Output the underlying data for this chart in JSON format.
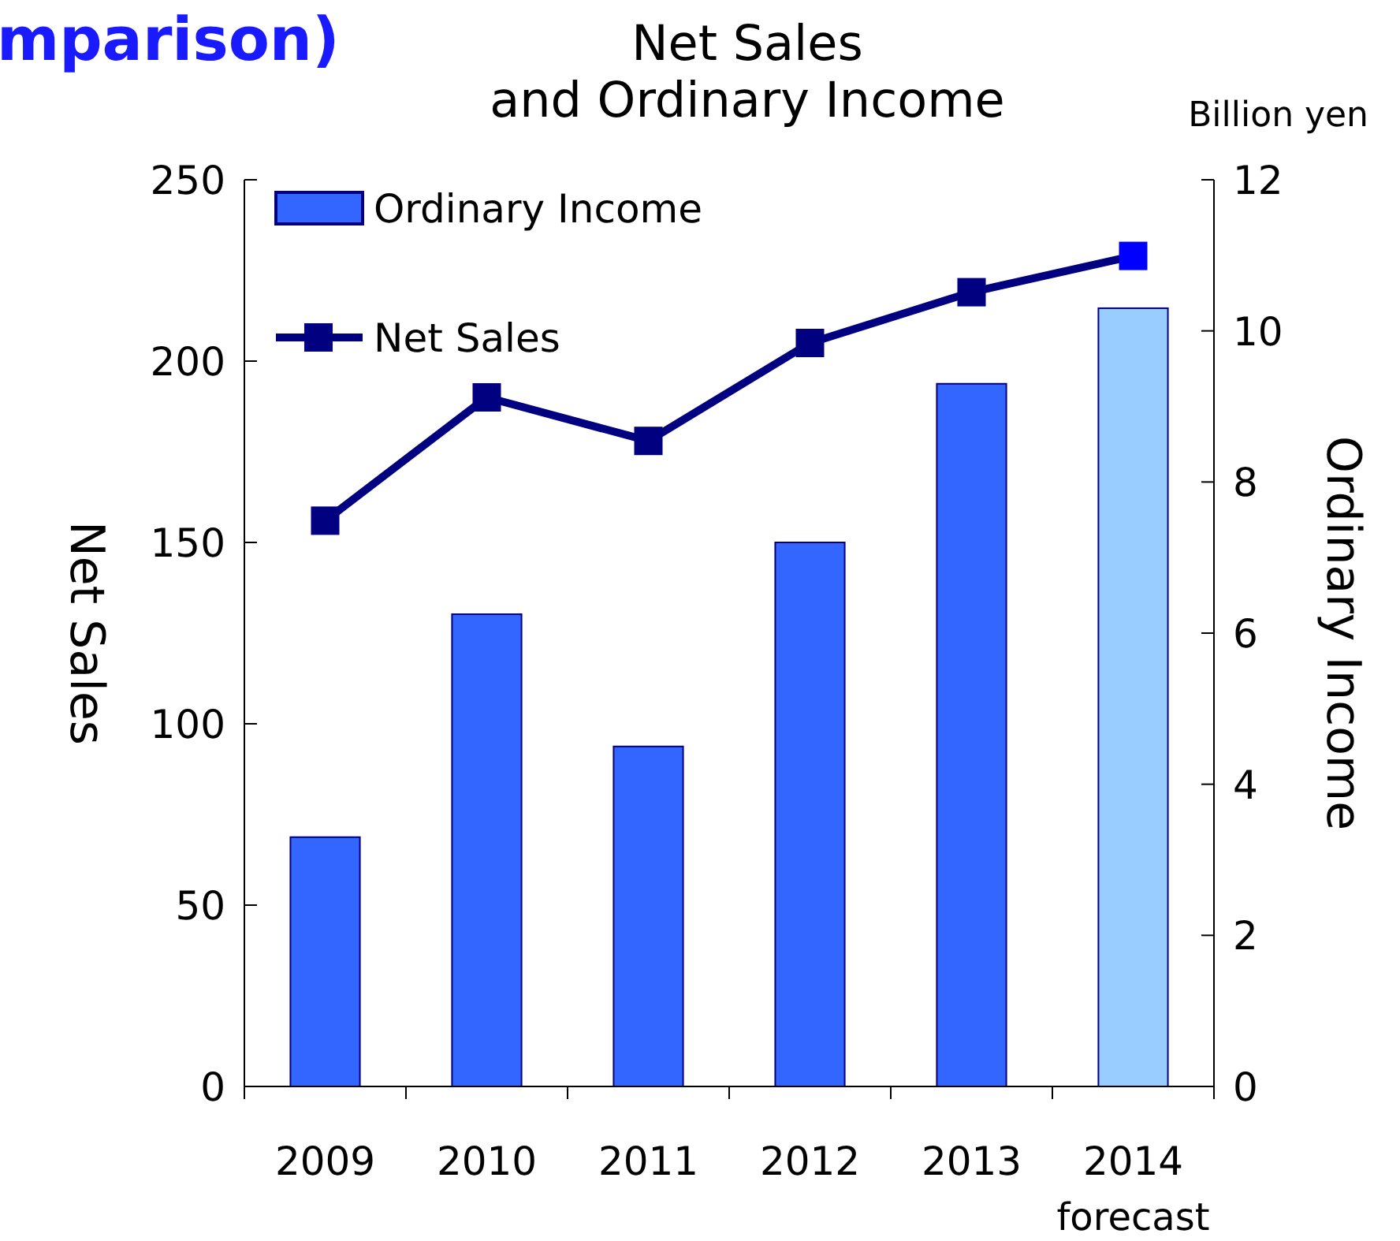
{
  "chart_data": {
    "type": "bar",
    "title": "Net Sales\nand Ordinary Income",
    "ylabel": "Net Sales",
    "y2label": "Ordinary Income",
    "categories": [
      "2009",
      "2010",
      "2011",
      "2012",
      "2013",
      "2014"
    ],
    "series": [
      {
        "name": "Ordinary Income",
        "axis": "y2",
        "color": "#3366ff",
        "colors": [
          "#3366ff",
          "#3366ff",
          "#3366ff",
          "#3366ff",
          "#3366ff",
          "#99ccff"
        ],
        "values": [
          3.3,
          6.25,
          4.5,
          7.2,
          9.3,
          10.3
        ]
      },
      {
        "name": "Net Sales",
        "type": "line",
        "color": "#000080",
        "colors": [
          "#000080",
          "#000080",
          "#000080",
          "#000080",
          "#000080",
          "#0000ff"
        ],
        "values": [
          156,
          190,
          178,
          205,
          219,
          229
        ]
      }
    ],
    "ylim": [
      0,
      250
    ],
    "yticks": [
      0,
      50,
      100,
      150,
      200,
      250
    ],
    "y2lim": [
      0,
      12
    ],
    "y2ticks": [
      0,
      2,
      4,
      6,
      8,
      10,
      12
    ],
    "marker": "square",
    "line_style": "solid",
    "legend": "top left",
    "grid": false,
    "annotations": [
      "mparison)",
      "Billion yen",
      "forecast"
    ]
  }
}
